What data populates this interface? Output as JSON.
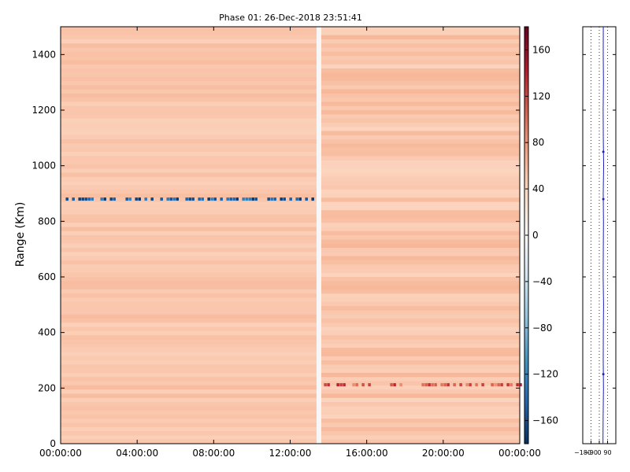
{
  "chart_data": [
    {
      "type": "heatmap",
      "title": "Phase 01: 26-Dec-2018 23:51:41",
      "ylabel": "Range (Km)",
      "xlabel": "",
      "x_ticks": [
        "00:00:00",
        "04:00:00",
        "08:00:00",
        "12:00:00",
        "16:00:00",
        "20:00:00",
        "00:00:00"
      ],
      "x_range_hours": [
        0,
        24
      ],
      "y_ticks": [
        0,
        200,
        400,
        600,
        800,
        1000,
        1200,
        1400
      ],
      "ylim": [
        0,
        1500
      ],
      "colorbar": {
        "colormap": "RdBu_r",
        "range": [
          -180,
          180
        ],
        "ticks": [
          -160,
          -120,
          -80,
          -40,
          0,
          40,
          80,
          120,
          160
        ]
      },
      "background_phase": 50,
      "features": [
        {
          "kind": "horizontal_band",
          "range_km": 880,
          "hour_start": 0.1,
          "hour_end": 13.4,
          "phase": -150
        },
        {
          "kind": "vertical_gap",
          "hour": 13.5,
          "phase": 0
        },
        {
          "kind": "horizontal_band",
          "range_km": 212,
          "hour_start": 13.6,
          "hour_end": 24,
          "phase": 110
        }
      ]
    },
    {
      "type": "line",
      "title": "",
      "x_ticks": [
        "−180",
        "−90",
        "0",
        "90"
      ],
      "xlim": [
        -180,
        180
      ],
      "ylim": [
        0,
        1500
      ],
      "grid": true,
      "description_values": "phase profile vs range",
      "y": [
        0,
        100,
        200,
        300,
        400,
        500,
        600,
        700,
        800,
        900,
        1000,
        1100,
        1200,
        1300,
        1400,
        1500
      ],
      "x": [
        40,
        42,
        45,
        43,
        44,
        46,
        42,
        44,
        45,
        43,
        47,
        44,
        42,
        45,
        43,
        44
      ]
    }
  ]
}
